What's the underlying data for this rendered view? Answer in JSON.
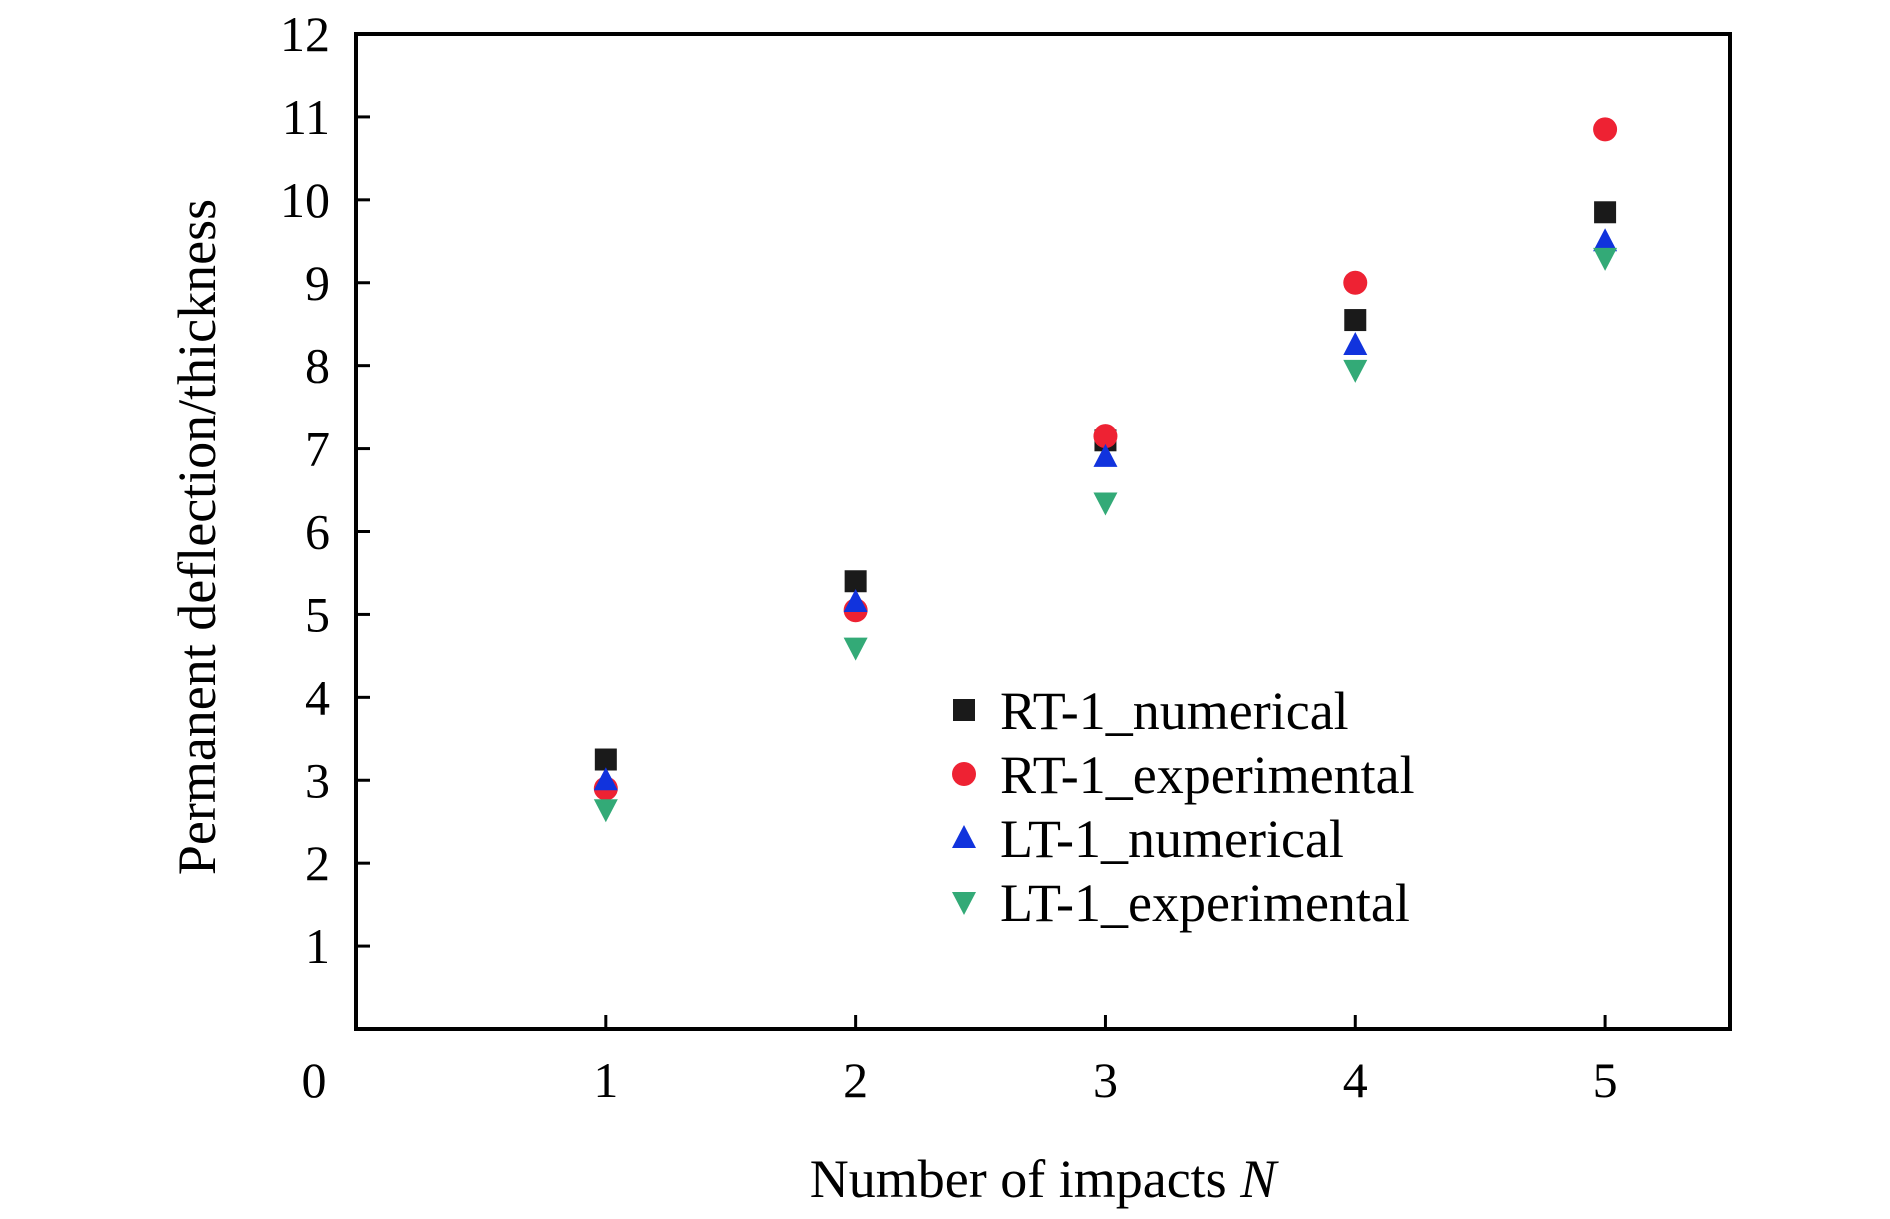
{
  "chart_data": {
    "type": "scatter",
    "title": "",
    "xlabel": "Number of impacts",
    "xlabel_var": "N",
    "ylabel": "Permanent deflection/thickness",
    "xlim": [
      0,
      5.5
    ],
    "ylim": [
      0,
      12
    ],
    "x_ticks": [
      "1",
      "2",
      "3",
      "4",
      "5"
    ],
    "y_ticks": [
      "1",
      "2",
      "3",
      "4",
      "5",
      "6",
      "7",
      "8",
      "9",
      "10",
      "11",
      "12"
    ],
    "origin_label": "0",
    "grid": false,
    "legend_position": "lower-right",
    "x": [
      1,
      2,
      3,
      4,
      5
    ],
    "series": [
      {
        "name": "RT-1_numerical",
        "marker": "square",
        "color": "#1a1a1a",
        "values": [
          3.25,
          5.4,
          7.1,
          8.55,
          9.85
        ]
      },
      {
        "name": "RT-1_experimental",
        "marker": "circle",
        "color": "#ee2233",
        "values": [
          2.9,
          5.05,
          7.15,
          9.0,
          10.85
        ]
      },
      {
        "name": "LT-1_numerical",
        "marker": "triangle-up",
        "color": "#1133dd",
        "values": [
          3.0,
          5.15,
          6.9,
          8.25,
          9.5
        ]
      },
      {
        "name": "LT-1_experimental",
        "marker": "triangle-down",
        "color": "#33aa77",
        "values": [
          2.65,
          4.6,
          6.35,
          7.95,
          9.3
        ]
      }
    ]
  }
}
